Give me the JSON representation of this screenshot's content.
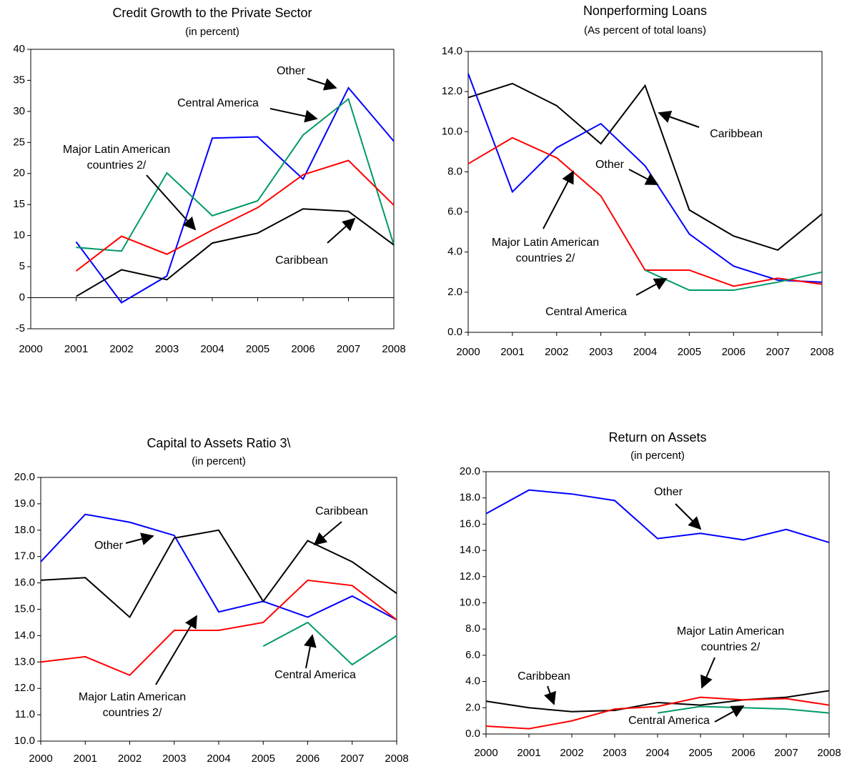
{
  "chart_data": [
    {
      "type": "line",
      "title": "Credit Growth to the Private Sector",
      "subtitle": "(in percent)",
      "x": [
        2000,
        2001,
        2002,
        2003,
        2004,
        2005,
        2006,
        2007,
        2008
      ],
      "xlim": [
        2000,
        2008
      ],
      "xticks": [
        2000,
        2001,
        2002,
        2003,
        2004,
        2005,
        2006,
        2007,
        2008
      ],
      "ylim": [
        -5,
        40
      ],
      "yticks": [
        -5,
        0,
        5,
        10,
        15,
        20,
        25,
        30,
        35,
        40
      ],
      "series": [
        {
          "name": "Other",
          "color": "#0000ff",
          "values": [
            null,
            9.0,
            -0.8,
            3.5,
            25.7,
            25.9,
            19.1,
            33.8,
            25.2
          ]
        },
        {
          "name": "Central America",
          "color": "#009966",
          "values": [
            null,
            8.1,
            7.5,
            20.1,
            13.2,
            15.6,
            26.2,
            32.0,
            8.5
          ]
        },
        {
          "name": "Major Latin American countries 2/",
          "color": "#ff0000",
          "values": [
            null,
            4.3,
            9.9,
            7.0,
            10.9,
            14.5,
            19.8,
            22.1,
            14.9
          ]
        },
        {
          "name": "Caribbean",
          "color": "#000000",
          "values": [
            null,
            0.2,
            4.5,
            2.9,
            8.8,
            10.4,
            14.3,
            13.9,
            8.5
          ]
        }
      ],
      "annotations": [
        {
          "text": [
            "Other"
          ]
        },
        {
          "text": [
            "Central America"
          ]
        },
        {
          "text": [
            "Major Latin American",
            "countries 2/"
          ]
        },
        {
          "text": [
            "Caribbean"
          ]
        }
      ]
    },
    {
      "type": "line",
      "title": "Nonperforming Loans",
      "subtitle": "(As percent of total loans)",
      "x": [
        2000,
        2001,
        2002,
        2003,
        2004,
        2005,
        2006,
        2007,
        2008
      ],
      "xlim": [
        2000,
        2008
      ],
      "xticks": [
        2000,
        2001,
        2002,
        2003,
        2004,
        2005,
        2006,
        2007,
        2008
      ],
      "ylim": [
        0,
        14
      ],
      "yticks": [
        {
          "value": 0,
          "label": "0.0"
        },
        {
          "value": 2,
          "label": "2.0"
        },
        {
          "value": 4,
          "label": "4.0"
        },
        {
          "value": 6,
          "label": "6.0"
        },
        {
          "value": 8,
          "label": "8.0"
        },
        {
          "value": 10,
          "label": "10.0"
        },
        {
          "value": 12,
          "label": "12.0"
        },
        {
          "value": 14,
          "label": "14.0"
        }
      ],
      "series": [
        {
          "name": "Caribbean",
          "color": "#000000",
          "values": [
            11.7,
            12.4,
            11.3,
            9.4,
            12.3,
            6.1,
            4.8,
            4.1,
            5.9
          ]
        },
        {
          "name": "Other",
          "color": "#0000ff",
          "values": [
            12.9,
            7.0,
            9.2,
            10.4,
            8.3,
            4.9,
            3.3,
            2.6,
            2.5
          ]
        },
        {
          "name": "Major Latin American countries 2/",
          "color": "#ff0000",
          "values": [
            8.4,
            9.7,
            8.7,
            6.8,
            3.1,
            3.1,
            2.3,
            2.7,
            2.4
          ]
        },
        {
          "name": "Central America",
          "color": "#009966",
          "values": [
            null,
            null,
            null,
            null,
            3.1,
            2.1,
            2.1,
            2.5,
            3.0
          ]
        }
      ],
      "annotations": [
        {
          "text": [
            "Caribbean"
          ]
        },
        {
          "text": [
            "Other"
          ]
        },
        {
          "text": [
            "Major Latin American",
            "countries  2/"
          ]
        },
        {
          "text": [
            "Central America"
          ]
        }
      ]
    },
    {
      "type": "line",
      "title": "Capital to Assets Ratio 3\\",
      "subtitle": "(in percent)",
      "x": [
        2000,
        2001,
        2002,
        2003,
        2004,
        2005,
        2006,
        2007,
        2008
      ],
      "xlim": [
        2000,
        2008
      ],
      "xticks": [
        2000,
        2001,
        2002,
        2003,
        2004,
        2005,
        2006,
        2007,
        2008
      ],
      "ylim": [
        10,
        20
      ],
      "yticks": [
        {
          "value": 10,
          "label": "10.0"
        },
        {
          "value": 11,
          "label": "11.0"
        },
        {
          "value": 12,
          "label": "12.0"
        },
        {
          "value": 13,
          "label": "13.0"
        },
        {
          "value": 14,
          "label": "14.0"
        },
        {
          "value": 15,
          "label": "15.0"
        },
        {
          "value": 16,
          "label": "16.0"
        },
        {
          "value": 17,
          "label": "17.0"
        },
        {
          "value": 18,
          "label": "18.0"
        },
        {
          "value": 19,
          "label": "19.0"
        },
        {
          "value": 20,
          "label": "20.0"
        }
      ],
      "series": [
        {
          "name": "Other",
          "color": "#0000ff",
          "values": [
            16.8,
            18.6,
            18.3,
            17.8,
            14.9,
            15.3,
            14.7,
            15.5,
            14.6
          ]
        },
        {
          "name": "Caribbean",
          "color": "#000000",
          "values": [
            16.1,
            16.2,
            14.7,
            17.7,
            18.0,
            15.3,
            17.6,
            16.8,
            15.6
          ]
        },
        {
          "name": "Major Latin American countries 2/",
          "color": "#ff0000",
          "values": [
            13.0,
            13.2,
            12.5,
            14.2,
            14.2,
            14.5,
            16.1,
            15.9,
            14.6
          ]
        },
        {
          "name": "Central America",
          "color": "#009966",
          "values": [
            null,
            null,
            null,
            null,
            null,
            13.6,
            14.5,
            12.9,
            14.0
          ]
        }
      ],
      "annotations": [
        {
          "text": [
            "Caribbean"
          ]
        },
        {
          "text": [
            "Other"
          ]
        },
        {
          "text": [
            "Major Latin American",
            "countries 2/"
          ]
        },
        {
          "text": [
            "Central America"
          ]
        }
      ]
    },
    {
      "type": "line",
      "title": "Return on Assets",
      "subtitle": "(in percent)",
      "x": [
        2000,
        2001,
        2002,
        2003,
        2004,
        2005,
        2006,
        2007,
        2008
      ],
      "xlim": [
        2000,
        2008
      ],
      "xticks": [
        2000,
        2001,
        2002,
        2003,
        2004,
        2005,
        2006,
        2007,
        2008
      ],
      "ylim": [
        0,
        20
      ],
      "yticks": [
        {
          "value": 0,
          "label": "0.0"
        },
        {
          "value": 2,
          "label": "2.0"
        },
        {
          "value": 4,
          "label": "4.0"
        },
        {
          "value": 6,
          "label": "6.0"
        },
        {
          "value": 8,
          "label": "8.0"
        },
        {
          "value": 10,
          "label": "10.0"
        },
        {
          "value": 12,
          "label": "12.0"
        },
        {
          "value": 14,
          "label": "14.0"
        },
        {
          "value": 16,
          "label": "16.0"
        },
        {
          "value": 18,
          "label": "18.0"
        },
        {
          "value": 20,
          "label": "20.0"
        }
      ],
      "series": [
        {
          "name": "Other",
          "color": "#0000ff",
          "values": [
            16.8,
            18.6,
            18.3,
            17.8,
            14.9,
            15.3,
            14.8,
            15.6,
            14.6
          ]
        },
        {
          "name": "Caribbean",
          "color": "#000000",
          "values": [
            2.5,
            2.0,
            1.7,
            1.8,
            2.4,
            2.2,
            2.6,
            2.8,
            3.3
          ]
        },
        {
          "name": "Major Latin American countries 2/",
          "color": "#ff0000",
          "values": [
            0.6,
            0.4,
            1.0,
            1.9,
            2.1,
            2.8,
            2.6,
            2.7,
            2.2
          ]
        },
        {
          "name": "Central America",
          "color": "#009966",
          "values": [
            null,
            null,
            null,
            null,
            1.6,
            2.1,
            2.0,
            1.9,
            1.6
          ]
        }
      ],
      "annotations": [
        {
          "text": [
            "Other"
          ]
        },
        {
          "text": [
            "Major Latin American",
            "countries 2/"
          ]
        },
        {
          "text": [
            "Caribbean"
          ]
        },
        {
          "text": [
            "Central America"
          ]
        }
      ]
    }
  ]
}
